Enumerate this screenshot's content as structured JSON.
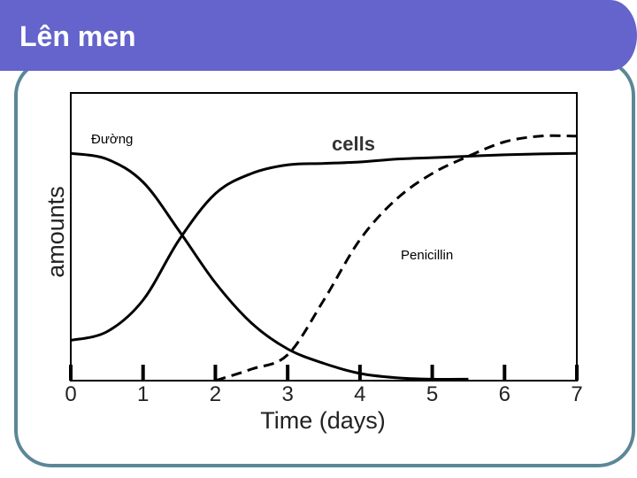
{
  "slide_title": "Lên men",
  "chart_data": {
    "type": "line",
    "x_label": "Time (days)",
    "y_label": "amounts",
    "x": [
      0,
      0.5,
      1,
      1.5,
      2,
      2.5,
      3,
      3.5,
      4,
      4.5,
      5,
      5.5,
      6,
      6.5,
      7
    ],
    "series": [
      {
        "name": "Đường",
        "color": "#000000",
        "style": "solid",
        "values": [
          79,
          77,
          69,
          52,
          34,
          20,
          11,
          6,
          2.5,
          1,
          0.5,
          0.5,
          null,
          null,
          null
        ]
      },
      {
        "name": "cells",
        "color": "#000000",
        "style": "solid",
        "values": [
          14,
          17,
          28,
          49,
          65,
          72,
          75,
          75.5,
          76,
          77,
          77.5,
          78,
          78.5,
          78.8,
          79
        ]
      },
      {
        "name": "Penicillin",
        "color": "#000000",
        "style": "dashed",
        "values": [
          null,
          null,
          null,
          null,
          0,
          4,
          9,
          28,
          49,
          63,
          72,
          78,
          83,
          85,
          85
        ]
      }
    ],
    "xlim": [
      0,
      7
    ],
    "xticks": [
      0,
      1,
      2,
      3,
      4,
      5,
      6,
      7
    ],
    "ylim": [
      0,
      100
    ]
  }
}
